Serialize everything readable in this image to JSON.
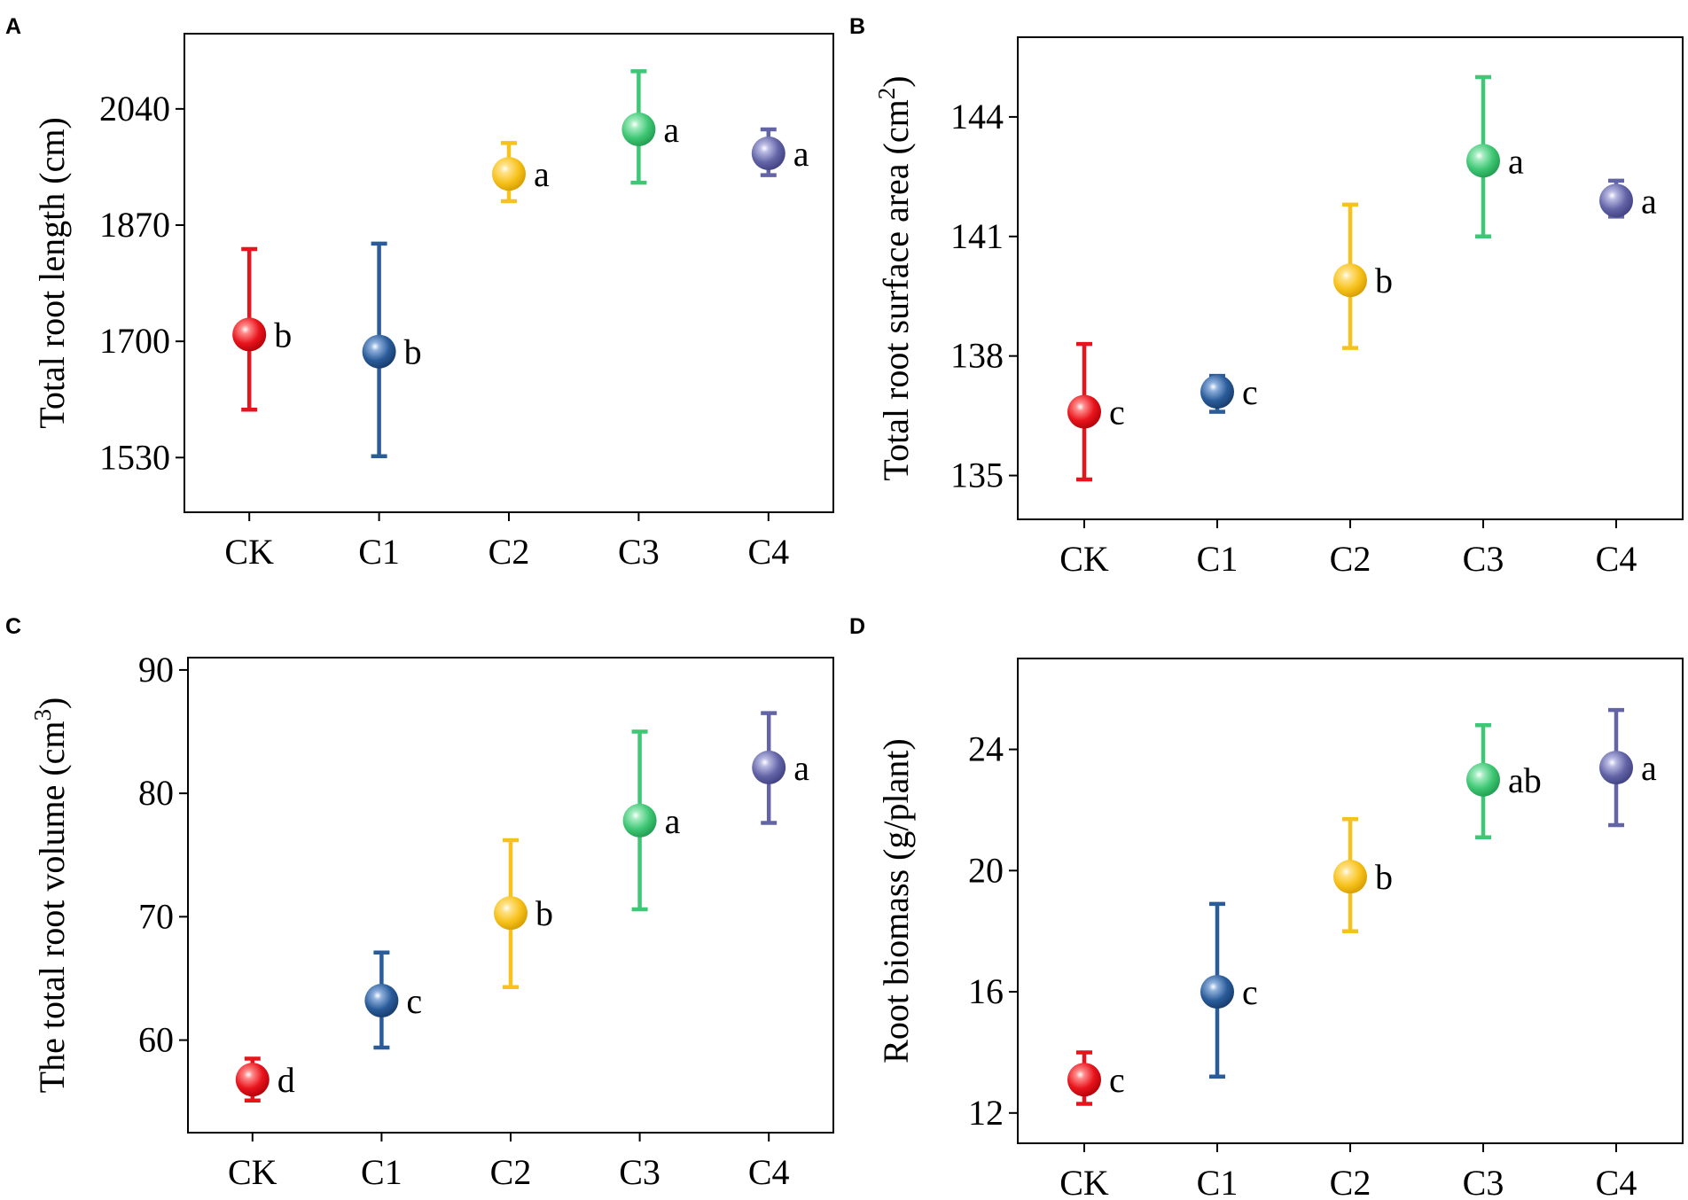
{
  "chart_data": [
    {
      "panel": "A",
      "type": "scatter",
      "categories": [
        "CK",
        "C1",
        "C2",
        "C3",
        "C4"
      ],
      "values": [
        1710,
        1685,
        1945,
        2010,
        1975
      ],
      "error_upper": [
        1835,
        1843,
        1990,
        2095,
        2010
      ],
      "error_lower": [
        1600,
        1532,
        1905,
        1932,
        1943
      ],
      "significance": [
        "b",
        "b",
        "a",
        "a",
        "a"
      ],
      "ylabel": "Total root length (cm)",
      "ylabel_sup": "",
      "ylabel_suffix": "",
      "yticks": [
        1530,
        1700,
        1870,
        2040
      ],
      "ylim": [
        1450,
        2150
      ]
    },
    {
      "panel": "B",
      "type": "scatter",
      "categories": [
        "CK",
        "C1",
        "C2",
        "C3",
        "C4"
      ],
      "values": [
        136.6,
        137.1,
        139.9,
        142.9,
        141.9
      ],
      "error_upper": [
        138.3,
        137.5,
        141.8,
        145.0,
        142.4
      ],
      "error_lower": [
        134.9,
        136.6,
        138.2,
        141.0,
        141.5
      ],
      "significance": [
        "c",
        "c",
        "b",
        "a",
        "a"
      ],
      "ylabel": "Total root surface area (cm",
      "ylabel_sup": "2",
      "ylabel_suffix": ")",
      "yticks": [
        135,
        138,
        141,
        144
      ],
      "ylim": [
        133.9,
        146.0
      ]
    },
    {
      "panel": "C",
      "type": "scatter",
      "categories": [
        "CK",
        "C1",
        "C2",
        "C3",
        "C4"
      ],
      "values": [
        56.8,
        63.2,
        70.3,
        77.8,
        82.1
      ],
      "error_upper": [
        58.5,
        67.1,
        76.2,
        85.0,
        86.5
      ],
      "error_lower": [
        55.1,
        59.4,
        64.3,
        70.6,
        77.6
      ],
      "significance": [
        "d",
        "c",
        "b",
        "a",
        "a"
      ],
      "ylabel": "The total root volume (cm",
      "ylabel_sup": "3",
      "ylabel_suffix": ")",
      "yticks": [
        60,
        70,
        80,
        90
      ],
      "ylim": [
        52.5,
        91
      ]
    },
    {
      "panel": "D",
      "type": "scatter",
      "categories": [
        "CK",
        "C1",
        "C2",
        "C3",
        "C4"
      ],
      "values": [
        13.1,
        16.0,
        19.8,
        23.0,
        23.4
      ],
      "error_upper": [
        14.0,
        18.9,
        21.7,
        24.8,
        25.3
      ],
      "error_lower": [
        12.3,
        13.2,
        18.0,
        21.1,
        21.5
      ],
      "significance": [
        "c",
        "c",
        "b",
        "ab",
        "a"
      ],
      "ylabel": "Root biomass (g/plant)",
      "ylabel_sup": "",
      "ylabel_suffix": "",
      "yticks": [
        12,
        16,
        20,
        24
      ],
      "ylim": [
        11,
        27
      ]
    }
  ],
  "colors": {
    "CK": "#e8141c",
    "C1": "#2a5c9a",
    "C2": "#f7c21c",
    "C3": "#3ec774",
    "C4": "#6364a6"
  }
}
